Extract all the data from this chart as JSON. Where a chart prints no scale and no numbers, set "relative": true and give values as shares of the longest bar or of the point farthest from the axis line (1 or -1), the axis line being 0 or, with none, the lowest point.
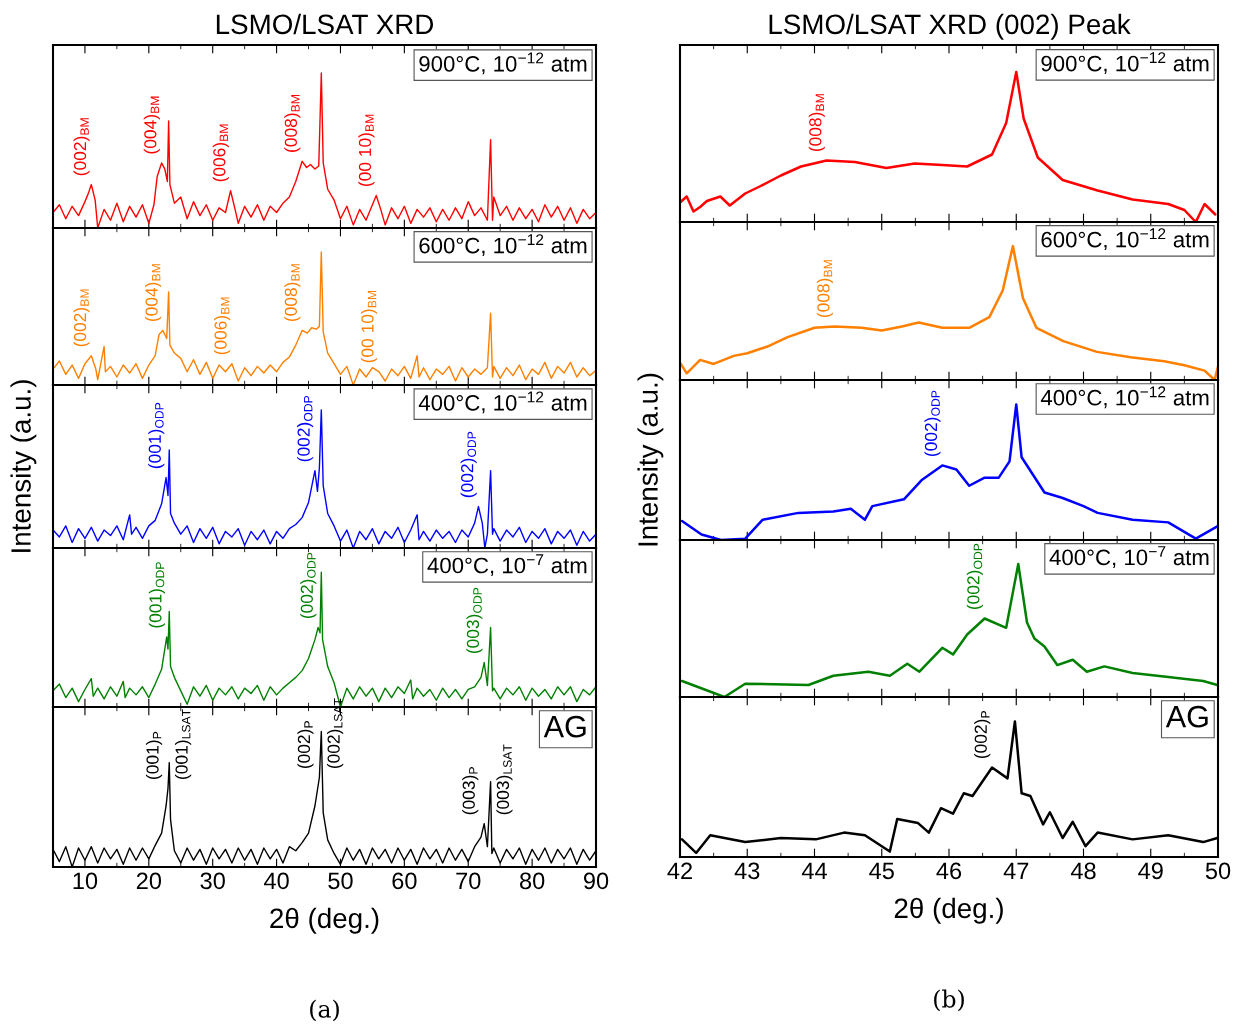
{
  "chart_data": [
    {
      "type": "line",
      "title": "LSMO/LSAT XRD",
      "relative": true,
      "xlim": [
        5,
        90
      ],
      "xticks": [
        10,
        20,
        30,
        40,
        50,
        60,
        70,
        80,
        90
      ],
      "tick_labels": false,
      "series": [
        {
          "color": "#ff0000",
          "x": [
            5,
            6,
            7,
            8,
            9,
            10,
            10.5,
            11,
            11.6,
            12,
            13,
            14,
            15,
            16,
            17,
            18,
            19,
            20,
            20.8,
            21.3,
            22,
            22.5,
            22.9,
            23.1,
            23.3,
            24,
            25,
            26,
            27,
            28,
            29,
            30,
            31,
            32,
            32.8,
            33.5,
            34,
            35,
            36,
            37,
            38,
            39,
            40,
            41,
            42,
            43,
            44,
            44.7,
            45.3,
            46,
            46.6,
            47,
            47.3,
            48,
            49,
            50,
            51,
            52,
            53,
            54,
            55,
            55.6,
            56.3,
            57,
            58,
            59,
            60,
            61,
            62,
            63,
            64,
            65,
            66,
            67,
            68,
            69,
            70,
            71,
            72,
            73,
            73.5,
            73.8,
            74,
            75,
            76,
            77,
            78,
            79,
            80,
            81,
            82,
            83,
            84,
            85,
            86,
            87,
            88,
            89,
            90
          ],
          "values": [
            0.1,
            0.15,
            0.06,
            0.14,
            0.08,
            0.17,
            0.22,
            0.28,
            0.18,
            0.0,
            0.12,
            0.05,
            0.16,
            0.04,
            0.14,
            0.07,
            0.15,
            0.03,
            0.15,
            0.33,
            0.42,
            0.38,
            0.3,
            0.69,
            0.28,
            0.16,
            0.2,
            0.06,
            0.17,
            0.08,
            0.15,
            0.05,
            0.13,
            0.1,
            0.24,
            0.12,
            0.03,
            0.14,
            0.07,
            0.15,
            0.05,
            0.14,
            0.1,
            0.16,
            0.2,
            0.3,
            0.43,
            0.39,
            0.41,
            0.38,
            0.4,
            1.0,
            0.42,
            0.25,
            0.18,
            0.06,
            0.14,
            0.02,
            0.12,
            0.05,
            0.15,
            0.21,
            0.12,
            0.02,
            0.13,
            0.06,
            0.14,
            0.03,
            0.12,
            0.07,
            0.13,
            0.04,
            0.12,
            0.05,
            0.13,
            0.06,
            0.17,
            0.08,
            0.13,
            0.05,
            0.57,
            0.05,
            0.2,
            0.08,
            0.14,
            0.05,
            0.13,
            0.06,
            0.12,
            0.04,
            0.15,
            0.07,
            0.14,
            0.05,
            0.13,
            0.03,
            0.12,
            0.06,
            0.1
          ]
        }
      ],
      "annotations": [
        "900°C, 10$^{−12}$ atm",
        {
          "text": "(002)$_{BM}$",
          "x": 11,
          "y": 0.28
        },
        {
          "text": "(004)$_{BM}$",
          "x": 22,
          "y": 0.42
        },
        {
          "text": "(006)$_{BM}$",
          "x": 32.8,
          "y": 0.24
        },
        {
          "text": "(008)$_{BM}$",
          "x": 44,
          "y": 0.43
        },
        {
          "text": "(00 10)$_{BM}$",
          "x": 55.6,
          "y": 0.21
        }
      ]
    },
    {
      "type": "line",
      "relative": true,
      "xlim": [
        5,
        90
      ],
      "xticks": [
        10,
        20,
        30,
        40,
        50,
        60,
        70,
        80,
        90
      ],
      "tick_labels": false,
      "series": [
        {
          "color": "#ff8000",
          "x": [
            5,
            6,
            7,
            8,
            9,
            10,
            11,
            11.7,
            12,
            13,
            13.2,
            14,
            15,
            16,
            17,
            18,
            19,
            20,
            21,
            21.6,
            22.2,
            22.8,
            23.1,
            23.3,
            24,
            25,
            26,
            27,
            28,
            29,
            30,
            31,
            32,
            33,
            34,
            35,
            36,
            37,
            38,
            39,
            40,
            41,
            42,
            43,
            44,
            44.8,
            45.5,
            46.2,
            46.7,
            47,
            47.3,
            48,
            49,
            50,
            51,
            52,
            53,
            54,
            55,
            56,
            57,
            58,
            59,
            60,
            61,
            62,
            62.3,
            63,
            64,
            65,
            66,
            67,
            68,
            69,
            70,
            71,
            72,
            73,
            73.5,
            73.8,
            74,
            75,
            76,
            77,
            78,
            79,
            80,
            81,
            82,
            83,
            84,
            85,
            86,
            87,
            88,
            89,
            90
          ],
          "values": [
            0.12,
            0.18,
            0.08,
            0.15,
            0.05,
            0.16,
            0.22,
            0.12,
            0.04,
            0.29,
            0.1,
            0.14,
            0.06,
            0.15,
            0.09,
            0.16,
            0.05,
            0.15,
            0.22,
            0.38,
            0.41,
            0.35,
            0.7,
            0.3,
            0.24,
            0.2,
            0.1,
            0.19,
            0.08,
            0.17,
            0.05,
            0.15,
            0.1,
            0.16,
            0.03,
            0.13,
            0.07,
            0.14,
            0.09,
            0.15,
            0.1,
            0.17,
            0.21,
            0.3,
            0.41,
            0.39,
            0.43,
            0.42,
            0.44,
            1.0,
            0.4,
            0.24,
            0.16,
            0.08,
            0.14,
            0.0,
            0.12,
            0.06,
            0.13,
            0.1,
            0.03,
            0.12,
            0.07,
            0.14,
            0.05,
            0.22,
            0.06,
            0.13,
            0.04,
            0.12,
            0.08,
            0.14,
            0.03,
            0.13,
            0.06,
            0.12,
            0.08,
            0.13,
            0.54,
            0.06,
            0.14,
            0.05,
            0.13,
            0.07,
            0.15,
            0.04,
            0.12,
            0.08,
            0.17,
            0.05,
            0.14,
            0.09,
            0.17,
            0.06,
            0.13,
            0.07,
            0.11
          ]
        }
      ],
      "annotations": [
        "600°C, 10$^{−12}$ atm",
        {
          "text": "(002)$_{BM}$",
          "x": 11,
          "y": 0.22
        },
        {
          "text": "(004)$_{BM}$",
          "x": 22.2,
          "y": 0.41
        },
        {
          "text": "(006)$_{BM}$",
          "x": 33,
          "y": 0.16
        },
        {
          "text": "(008)$_{BM}$",
          "x": 44,
          "y": 0.41
        },
        {
          "text": "(00 10)$_{BM}$",
          "x": 56,
          "y": 0.1
        }
      ]
    },
    {
      "type": "line",
      "relative": true,
      "ylabel": "Intensity (a.u.)",
      "xlim": [
        5,
        90
      ],
      "xticks": [
        10,
        20,
        30,
        40,
        50,
        60,
        70,
        80,
        90
      ],
      "tick_labels": false,
      "series": [
        {
          "color": "#0000ff",
          "x": [
            5,
            6,
            7,
            8,
            9,
            10,
            11,
            12,
            13,
            14,
            15,
            16,
            17,
            17.3,
            18,
            19,
            20,
            21,
            22,
            22.7,
            23.0,
            23.2,
            23.4,
            24,
            25,
            26,
            27,
            28,
            29,
            30,
            31,
            32,
            33,
            34,
            35,
            36,
            37,
            38,
            39,
            40,
            41,
            42,
            43,
            44,
            45,
            46,
            46.4,
            46.7,
            47.0,
            47.3,
            48,
            49,
            50,
            51,
            52,
            53,
            54,
            55,
            56,
            57,
            58,
            59,
            60,
            61,
            62,
            62.3,
            63,
            64,
            65,
            66,
            67,
            68,
            69,
            70,
            71,
            71.6,
            72.2,
            72.6,
            73,
            73.5,
            73.8,
            74,
            75,
            76,
            77,
            78,
            79,
            80,
            81,
            82,
            83,
            84,
            85,
            86,
            87,
            88,
            89,
            90
          ],
          "values": [
            0.13,
            0.08,
            0.16,
            0.04,
            0.14,
            0.07,
            0.15,
            0.05,
            0.13,
            0.09,
            0.16,
            0.06,
            0.24,
            0.1,
            0.15,
            0.07,
            0.16,
            0.2,
            0.32,
            0.51,
            0.38,
            0.71,
            0.25,
            0.18,
            0.1,
            0.16,
            0.04,
            0.14,
            0.07,
            0.15,
            0.03,
            0.12,
            0.08,
            0.14,
            0.02,
            0.12,
            0.06,
            0.13,
            0.03,
            0.12,
            0.07,
            0.14,
            0.17,
            0.22,
            0.33,
            0.56,
            0.41,
            0.58,
            1.0,
            0.45,
            0.25,
            0.16,
            0.05,
            0.13,
            0.0,
            0.12,
            0.06,
            0.14,
            0.03,
            0.12,
            0.07,
            0.15,
            0.04,
            0.13,
            0.24,
            0.06,
            0.12,
            0.05,
            0.13,
            0.07,
            0.12,
            0.04,
            0.13,
            0.08,
            0.18,
            0.3,
            0.18,
            0.0,
            0.1,
            0.56,
            0.1,
            0.14,
            0.05,
            0.13,
            0.08,
            0.15,
            0.04,
            0.12,
            0.07,
            0.14,
            0.03,
            0.12,
            0.07,
            0.13,
            0.02,
            0.12,
            0.05,
            0.1
          ]
        }
      ],
      "annotations": [
        "400°C, 10$^{−12}$ atm",
        {
          "text": "(001)$_{ODP}$",
          "x": 22.7,
          "y": 0.51
        },
        {
          "text": "(002)$_{ODP}$",
          "x": 46,
          "y": 0.56
        },
        {
          "text": "(002)$_{ODP}$",
          "x": 71.6,
          "y": 0.3
        }
      ]
    },
    {
      "type": "line",
      "relative": true,
      "xlim": [
        5,
        90
      ],
      "xticks": [
        10,
        20,
        30,
        40,
        50,
        60,
        70,
        80,
        90
      ],
      "tick_labels": false,
      "series": [
        {
          "color": "#008000",
          "x": [
            5,
            6,
            7,
            8,
            9,
            10,
            11,
            11.3,
            12,
            13,
            14,
            15,
            16,
            16.3,
            17,
            18,
            19,
            20,
            21,
            22,
            22.8,
            23.0,
            23.2,
            23.4,
            24,
            25,
            26,
            27,
            28,
            29,
            30,
            31,
            32,
            33,
            34,
            35,
            36,
            37,
            38,
            39,
            40,
            41,
            42,
            43,
            44,
            45,
            46,
            46.5,
            46.8,
            47.0,
            47.2,
            48,
            49,
            50,
            51,
            52,
            53,
            54,
            55,
            56,
            57,
            58,
            59,
            60,
            61,
            61.3,
            62,
            63,
            64,
            65,
            66,
            67,
            68,
            69,
            70,
            71,
            72,
            72.5,
            73.0,
            73.5,
            73.8,
            74,
            75,
            76,
            77,
            78,
            79,
            80,
            81,
            82,
            83,
            84,
            85,
            86,
            87,
            88,
            89,
            90
          ],
          "values": [
            0.12,
            0.17,
            0.07,
            0.14,
            0.04,
            0.13,
            0.21,
            0.08,
            0.14,
            0.06,
            0.15,
            0.08,
            0.19,
            0.07,
            0.14,
            0.09,
            0.15,
            0.07,
            0.17,
            0.28,
            0.52,
            0.43,
            0.71,
            0.3,
            0.22,
            0.12,
            0.02,
            0.15,
            0.08,
            0.16,
            0.05,
            0.14,
            0.09,
            0.15,
            0.06,
            0.14,
            0.1,
            0.16,
            0.05,
            0.15,
            0.09,
            0.14,
            0.18,
            0.22,
            0.27,
            0.36,
            0.5,
            0.59,
            0.55,
            1.0,
            0.5,
            0.3,
            0.18,
            0.0,
            0.14,
            0.06,
            0.15,
            0.08,
            0.14,
            0.04,
            0.14,
            0.07,
            0.15,
            0.1,
            0.2,
            0.06,
            0.14,
            0.08,
            0.13,
            0.05,
            0.14,
            0.07,
            0.13,
            0.06,
            0.13,
            0.15,
            0.22,
            0.33,
            0.16,
            0.59,
            0.12,
            0.14,
            0.06,
            0.14,
            0.09,
            0.15,
            0.05,
            0.14,
            0.08,
            0.13,
            0.06,
            0.15,
            0.09,
            0.15,
            0.04,
            0.13,
            0.09,
            0.15
          ]
        }
      ],
      "annotations": [
        "400°C, 10$^{−7}$ atm",
        {
          "text": "(001)$_{ODP}$",
          "x": 22.8,
          "y": 0.52
        },
        {
          "text": "(002)$_{ODP}$",
          "x": 46.5,
          "y": 0.59
        },
        {
          "text": "(003)$_{ODP}$",
          "x": 72.5,
          "y": 0.33
        }
      ]
    },
    {
      "type": "line",
      "relative": true,
      "xlabel": "2θ (deg.)",
      "xlim": [
        5,
        90
      ],
      "xticks": [
        10,
        20,
        30,
        40,
        50,
        60,
        70,
        80,
        90
      ],
      "tick_labels": "x",
      "series": [
        {
          "color": "#000000",
          "x": [
            5,
            6,
            7,
            8,
            9,
            10,
            11,
            12,
            13,
            14,
            15,
            16,
            17,
            18,
            19,
            20,
            21,
            22,
            22.7,
            23.0,
            23.2,
            23.4,
            24,
            25,
            26,
            27,
            28,
            29,
            30,
            31,
            32,
            33,
            34,
            35,
            36,
            37,
            38,
            39,
            40,
            41,
            42,
            43,
            44,
            45,
            46,
            46.7,
            47.0,
            47.3,
            48,
            49,
            50,
            51,
            52,
            53,
            54,
            55,
            56,
            57,
            58,
            59,
            60,
            61,
            62,
            63,
            64,
            65,
            66,
            67,
            68,
            69,
            70,
            71,
            72,
            72.5,
            73.0,
            73.5,
            73.7,
            74,
            75,
            76,
            77,
            78,
            79,
            80,
            81,
            82,
            83,
            84,
            85,
            86,
            87,
            88,
            89,
            90
          ],
          "values": [
            0.13,
            0.04,
            0.15,
            0.0,
            0.14,
            0.05,
            0.15,
            0.03,
            0.14,
            0.06,
            0.13,
            0.02,
            0.14,
            0.05,
            0.14,
            0.06,
            0.16,
            0.25,
            0.45,
            0.58,
            0.77,
            0.35,
            0.12,
            0.03,
            0.14,
            0.05,
            0.13,
            0.02,
            0.14,
            0.06,
            0.13,
            0.03,
            0.14,
            0.05,
            0.13,
            0.02,
            0.14,
            0.06,
            0.13,
            0.03,
            0.15,
            0.12,
            0.18,
            0.25,
            0.45,
            0.66,
            1.0,
            0.4,
            0.2,
            0.1,
            0.02,
            0.14,
            0.05,
            0.13,
            0.02,
            0.14,
            0.06,
            0.13,
            0.03,
            0.14,
            0.05,
            0.13,
            0.02,
            0.14,
            0.06,
            0.13,
            0.03,
            0.14,
            0.05,
            0.13,
            0.04,
            0.15,
            0.22,
            0.32,
            0.15,
            0.63,
            0.1,
            0.14,
            0.03,
            0.13,
            0.06,
            0.14,
            0.02,
            0.13,
            0.05,
            0.14,
            0.03,
            0.13,
            0.06,
            0.14,
            0.02,
            0.13,
            0.05,
            0.12
          ]
        }
      ],
      "annotations": [
        "AG",
        "(a)",
        {
          "text": "(001)$_{P}$",
          "x": 23.0,
          "y": 0.58
        },
        {
          "text": "(001)$_{LSAT}$",
          "x": 23.2,
          "y": 0.77
        },
        {
          "text": "(002)$_{P}$",
          "x": 46.7,
          "y": 0.66
        },
        {
          "text": "(002)$_{LSAT}$",
          "x": 47.0,
          "y": 1.0
        },
        {
          "text": "(003)$_{P}$",
          "x": 72.5,
          "y": 0.32
        },
        {
          "text": "(003)$_{LSAT}$",
          "x": 73.5,
          "y": 0.63
        }
      ]
    },
    {
      "type": "line",
      "title": "LSMO/LSAT XRD (002) Peak",
      "relative": true,
      "xlim": [
        42,
        50
      ],
      "xticks": [
        42,
        43,
        44,
        45,
        46,
        47,
        48,
        49,
        50
      ],
      "tick_labels": false,
      "series": [
        {
          "color": "#ff0000",
          "x": [
            42.0,
            42.1,
            42.2,
            42.3,
            42.4,
            42.6,
            42.74,
            42.97,
            43.2,
            43.5,
            43.8,
            44.18,
            44.6,
            45.07,
            45.49,
            45.9,
            46.27,
            46.64,
            46.85,
            47.0,
            47.11,
            47.32,
            47.69,
            48.21,
            48.73,
            49.26,
            49.5,
            49.67,
            49.8,
            49.96
          ],
          "values": [
            0.13,
            0.17,
            0.07,
            0.1,
            0.14,
            0.17,
            0.11,
            0.19,
            0.24,
            0.31,
            0.37,
            0.41,
            0.4,
            0.36,
            0.39,
            0.38,
            0.37,
            0.45,
            0.66,
            1.0,
            0.69,
            0.43,
            0.28,
            0.21,
            0.15,
            0.12,
            0.08,
            0.0,
            0.12,
            0.05
          ]
        }
      ],
      "annotations": [
        "900°C, 10$^{−12}$ atm",
        {
          "text": "(008)$_{BM}$",
          "x": 44.18,
          "y": 0.41
        }
      ]
    },
    {
      "type": "line",
      "relative": true,
      "xlim": [
        42,
        50
      ],
      "xticks": [
        42,
        43,
        44,
        45,
        46,
        47,
        48,
        49,
        50
      ],
      "tick_labels": false,
      "series": [
        {
          "color": "#ff8000",
          "x": [
            42.0,
            42.1,
            42.3,
            42.5,
            42.8,
            43.0,
            43.3,
            43.6,
            44.0,
            44.3,
            44.7,
            45.0,
            45.3,
            45.55,
            45.9,
            46.3,
            46.6,
            46.8,
            46.95,
            47.1,
            47.3,
            47.7,
            48.2,
            48.7,
            49.2,
            49.5,
            49.8,
            49.95,
            50.0
          ],
          "values": [
            0.13,
            0.05,
            0.15,
            0.12,
            0.18,
            0.2,
            0.25,
            0.32,
            0.39,
            0.4,
            0.39,
            0.37,
            0.4,
            0.43,
            0.39,
            0.39,
            0.47,
            0.67,
            1.0,
            0.61,
            0.39,
            0.29,
            0.21,
            0.17,
            0.14,
            0.11,
            0.07,
            0.0,
            0.1
          ]
        }
      ],
      "annotations": [
        "600°C, 10$^{−12}$ atm",
        {
          "text": "(008)$_{BM}$",
          "x": 44.3,
          "y": 0.4
        }
      ]
    },
    {
      "type": "line",
      "relative": true,
      "ylabel": "Intensity (a.u.)",
      "xlim": [
        42,
        50
      ],
      "xticks": [
        42,
        43,
        44,
        45,
        46,
        47,
        48,
        49,
        50
      ],
      "tick_labels": false,
      "series": [
        {
          "color": "#0000ff",
          "x": [
            42.03,
            42.32,
            42.61,
            42.97,
            43.23,
            43.76,
            44.28,
            44.54,
            44.75,
            44.86,
            45.33,
            45.59,
            45.9,
            46.11,
            46.3,
            46.53,
            46.74,
            46.9,
            47.0,
            47.08,
            47.42,
            47.69,
            48.0,
            48.21,
            48.73,
            49.26,
            49.67,
            49.99
          ],
          "values": [
            0.14,
            0.04,
            0.0,
            0.01,
            0.15,
            0.2,
            0.21,
            0.23,
            0.15,
            0.25,
            0.3,
            0.44,
            0.55,
            0.52,
            0.4,
            0.46,
            0.46,
            0.58,
            1.0,
            0.61,
            0.35,
            0.31,
            0.25,
            0.2,
            0.15,
            0.13,
            0.01,
            0.1
          ]
        }
      ],
      "annotations": [
        "400°C, 10$^{−12}$ atm",
        {
          "text": "(002)$_{ODP}$",
          "x": 45.9,
          "y": 0.55
        }
      ]
    },
    {
      "type": "line",
      "relative": true,
      "xlim": [
        42,
        50
      ],
      "xticks": [
        42,
        43,
        44,
        45,
        46,
        47,
        48,
        49,
        50
      ],
      "tick_labels": false,
      "series": [
        {
          "color": "#008000",
          "x": [
            42.03,
            42.66,
            42.97,
            43.91,
            44.28,
            44.8,
            45.12,
            45.38,
            45.56,
            45.9,
            46.06,
            46.27,
            46.53,
            46.85,
            47.03,
            47.16,
            47.27,
            47.42,
            47.61,
            47.84,
            48.05,
            48.31,
            48.73,
            49.26,
            49.78,
            49.99
          ],
          "values": [
            0.12,
            0.0,
            0.1,
            0.09,
            0.16,
            0.19,
            0.16,
            0.25,
            0.19,
            0.37,
            0.32,
            0.47,
            0.59,
            0.52,
            1.0,
            0.56,
            0.44,
            0.38,
            0.24,
            0.28,
            0.19,
            0.23,
            0.18,
            0.15,
            0.12,
            0.09
          ]
        }
      ],
      "annotations": [
        "400°C, 10$^{−7}$ atm",
        {
          "text": "(002)$_{ODP}$",
          "x": 46.53,
          "y": 0.59
        }
      ]
    },
    {
      "type": "line",
      "relative": true,
      "xlabel": "2θ (deg.)",
      "xlim": [
        42,
        50
      ],
      "xticks": [
        42,
        43,
        44,
        45,
        46,
        47,
        48,
        49,
        50
      ],
      "tick_labels": "x",
      "series": [
        {
          "color": "#000000",
          "x": [
            42.03,
            42.24,
            42.45,
            42.97,
            43.5,
            44.02,
            44.44,
            44.75,
            45.12,
            45.23,
            45.54,
            45.7,
            45.88,
            46.06,
            46.22,
            46.35,
            46.64,
            46.87,
            46.98,
            47.08,
            47.21,
            47.4,
            47.5,
            47.69,
            47.84,
            48.03,
            48.21,
            48.73,
            49.26,
            49.78,
            49.99
          ],
          "values": [
            0.13,
            0.03,
            0.16,
            0.11,
            0.14,
            0.13,
            0.18,
            0.16,
            0.04,
            0.28,
            0.25,
            0.18,
            0.36,
            0.32,
            0.47,
            0.45,
            0.66,
            0.58,
            1.0,
            0.47,
            0.45,
            0.24,
            0.33,
            0.14,
            0.26,
            0.08,
            0.18,
            0.13,
            0.16,
            0.11,
            0.14
          ]
        }
      ],
      "annotations": [
        "AG",
        "(b)",
        {
          "text": "(002)$_{P}$",
          "x": 46.64,
          "y": 0.66
        }
      ]
    }
  ]
}
